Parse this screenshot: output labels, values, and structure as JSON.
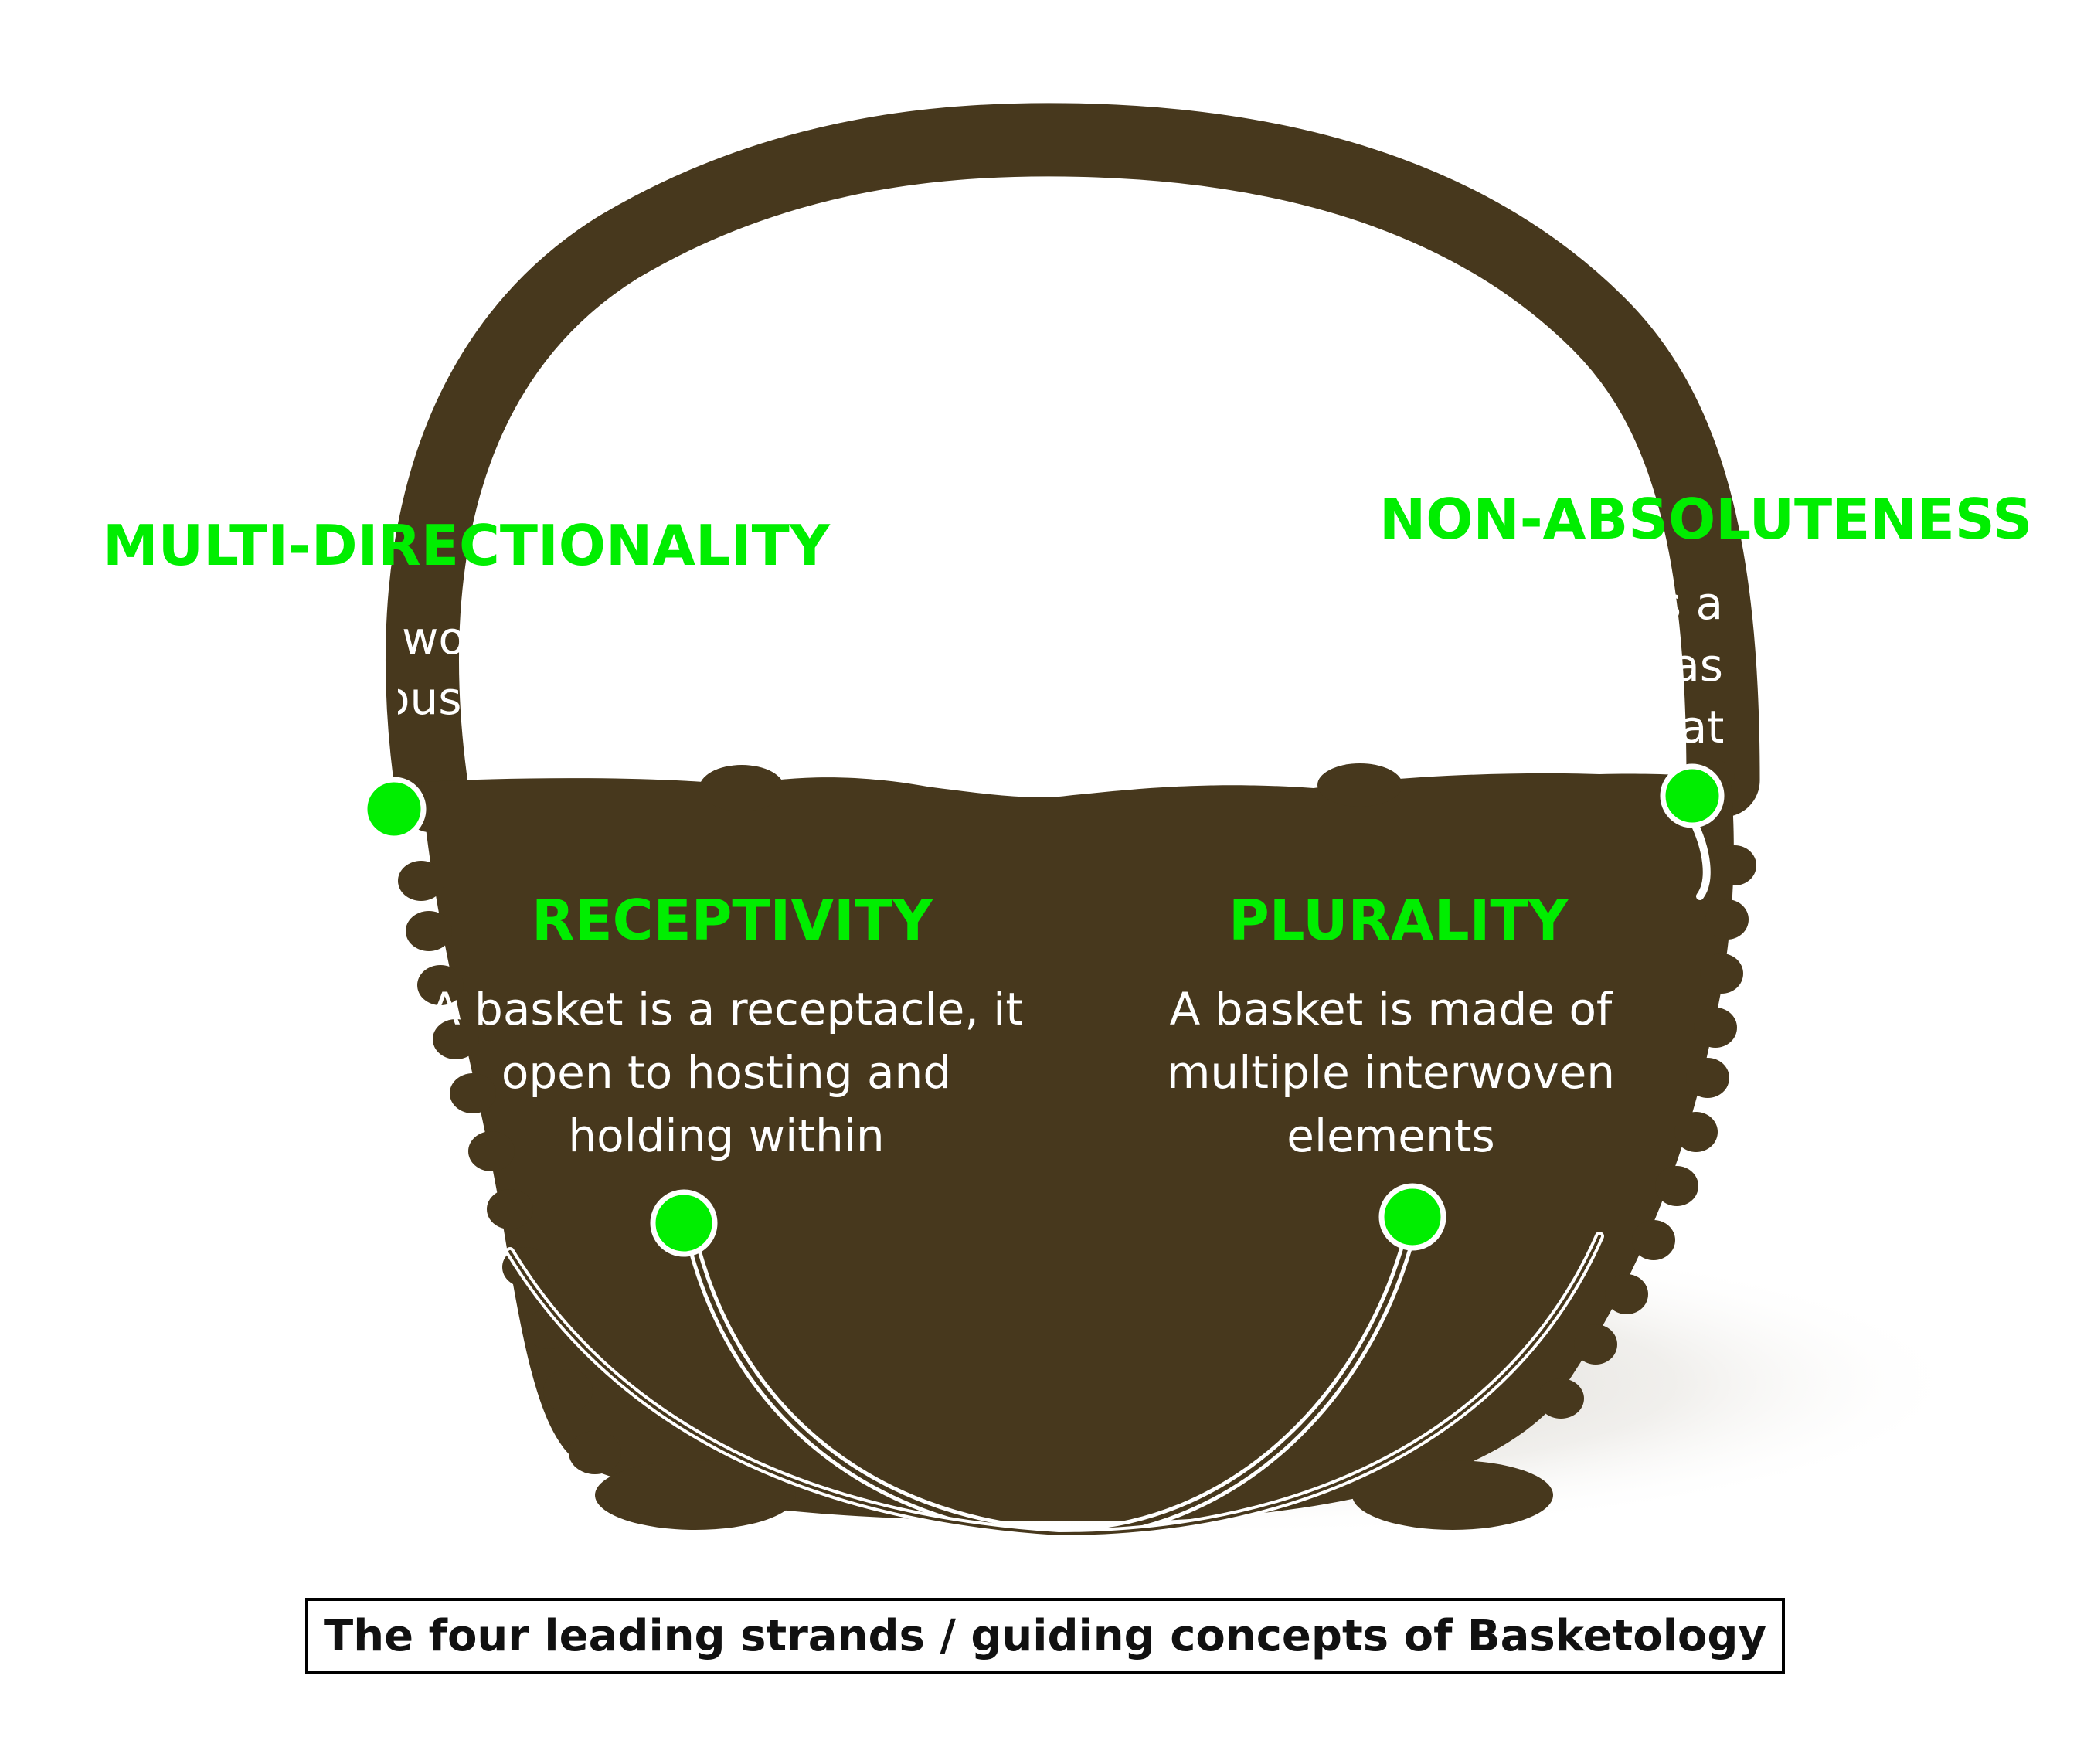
{
  "colors": {
    "basket": "#47381d",
    "accent": "#00ee00",
    "text_on_basket": "#ffffff",
    "caption_text": "#111111"
  },
  "concepts": [
    {
      "id": "multi-directionality",
      "title": "MULTI-DIRECTIONALITY",
      "text_fragments": [
        "wo",
        "ous"
      ]
    },
    {
      "id": "non-absoluteness",
      "title": "NON-ABSOLUTENESS",
      "text_fragments": [
        "as a",
        "e eas",
        "dat"
      ]
    },
    {
      "id": "receptivity",
      "title": "RECEPTIVITY",
      "text_lines": [
        "A basket is a receptacle, it",
        "open to hosting and",
        "holding within"
      ]
    },
    {
      "id": "plurality",
      "title": "PLURALITY",
      "text_lines": [
        "A basket is made of",
        "multiple interwoven",
        "elements"
      ]
    }
  ],
  "caption": "The four leading strands / guiding concepts of Basketology"
}
